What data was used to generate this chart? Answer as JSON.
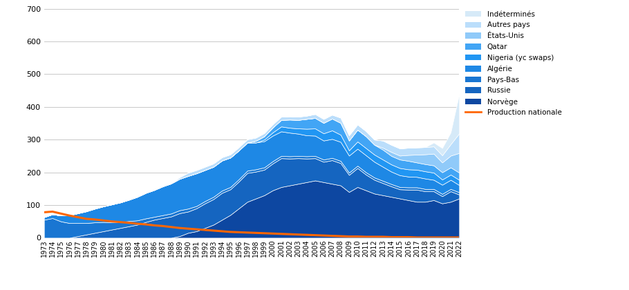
{
  "years": [
    1973,
    1974,
    1975,
    1976,
    1977,
    1978,
    1979,
    1980,
    1981,
    1982,
    1983,
    1984,
    1985,
    1986,
    1987,
    1988,
    1989,
    1990,
    1991,
    1992,
    1993,
    1994,
    1995,
    1996,
    1997,
    1998,
    1999,
    2000,
    2001,
    2002,
    2003,
    2004,
    2005,
    2006,
    2007,
    2008,
    2009,
    2010,
    2011,
    2012,
    2013,
    2014,
    2015,
    2016,
    2017,
    2018,
    2019,
    2020,
    2021,
    2022
  ],
  "norvege": [
    0,
    0,
    0,
    0,
    0,
    0,
    0,
    0,
    0,
    0,
    0,
    0,
    0,
    0,
    0,
    0,
    5,
    15,
    20,
    30,
    40,
    55,
    70,
    90,
    110,
    120,
    130,
    145,
    155,
    160,
    165,
    170,
    175,
    170,
    165,
    160,
    140,
    155,
    145,
    135,
    130,
    125,
    120,
    115,
    110,
    110,
    115,
    105,
    110,
    120
  ],
  "russie": [
    0,
    0,
    0,
    0,
    5,
    10,
    15,
    20,
    25,
    30,
    35,
    40,
    48,
    55,
    60,
    65,
    70,
    65,
    70,
    75,
    78,
    82,
    78,
    82,
    88,
    82,
    78,
    82,
    88,
    82,
    78,
    72,
    68,
    62,
    72,
    68,
    52,
    58,
    48,
    42,
    37,
    32,
    28,
    32,
    37,
    32,
    27,
    22,
    32,
    12
  ],
  "pays_bas": [
    55,
    60,
    50,
    45,
    40,
    35,
    32,
    28,
    22,
    18,
    16,
    13,
    11,
    9,
    9,
    9,
    9,
    9,
    7,
    7,
    7,
    7,
    7,
    7,
    7,
    7,
    7,
    7,
    7,
    7,
    7,
    7,
    7,
    7,
    7,
    7,
    7,
    7,
    7,
    7,
    7,
    7,
    7,
    7,
    7,
    7,
    7,
    7,
    7,
    7
  ],
  "algerie": [
    8,
    12,
    18,
    24,
    30,
    36,
    42,
    48,
    55,
    60,
    65,
    72,
    78,
    82,
    88,
    92,
    96,
    100,
    100,
    95,
    92,
    92,
    90,
    88,
    86,
    82,
    80,
    78,
    75,
    72,
    68,
    64,
    62,
    58,
    58,
    58,
    52,
    52,
    52,
    48,
    43,
    38,
    36,
    33,
    32,
    32,
    28,
    28,
    28,
    22
  ],
  "nigeria": [
    0,
    0,
    0,
    0,
    0,
    0,
    0,
    0,
    0,
    0,
    0,
    0,
    0,
    0,
    0,
    0,
    0,
    0,
    0,
    0,
    0,
    0,
    0,
    0,
    0,
    0,
    5,
    10,
    15,
    15,
    16,
    20,
    22,
    22,
    26,
    22,
    16,
    22,
    22,
    22,
    22,
    22,
    22,
    22,
    22,
    22,
    22,
    16,
    16,
    16
  ],
  "qatar": [
    0,
    0,
    0,
    0,
    0,
    0,
    0,
    0,
    0,
    0,
    0,
    0,
    0,
    0,
    0,
    0,
    0,
    0,
    0,
    0,
    0,
    0,
    0,
    0,
    0,
    5,
    10,
    15,
    20,
    25,
    26,
    30,
    32,
    32,
    36,
    36,
    30,
    36,
    36,
    30,
    30,
    26,
    26,
    26,
    22,
    22,
    22,
    22,
    22,
    22
  ],
  "etats_unis": [
    0,
    0,
    0,
    0,
    0,
    0,
    0,
    0,
    0,
    0,
    0,
    0,
    0,
    0,
    0,
    0,
    0,
    0,
    0,
    0,
    0,
    0,
    0,
    0,
    0,
    0,
    0,
    0,
    0,
    0,
    0,
    0,
    0,
    0,
    0,
    0,
    0,
    0,
    0,
    0,
    6,
    12,
    12,
    18,
    24,
    30,
    36,
    30,
    36,
    60
  ],
  "autres_pays": [
    0,
    0,
    0,
    0,
    0,
    0,
    0,
    0,
    0,
    0,
    0,
    0,
    0,
    0,
    0,
    0,
    5,
    10,
    10,
    10,
    10,
    10,
    10,
    10,
    10,
    10,
    10,
    10,
    10,
    10,
    10,
    10,
    12,
    12,
    12,
    16,
    16,
    16,
    16,
    16,
    22,
    22,
    22,
    22,
    22,
    22,
    22,
    22,
    35,
    60
  ],
  "indetermines": [
    0,
    0,
    0,
    0,
    0,
    0,
    0,
    0,
    0,
    0,
    0,
    0,
    0,
    0,
    0,
    0,
    0,
    0,
    0,
    0,
    0,
    0,
    0,
    0,
    0,
    0,
    0,
    0,
    0,
    0,
    0,
    0,
    0,
    0,
    0,
    0,
    0,
    0,
    0,
    0,
    0,
    0,
    0,
    0,
    0,
    0,
    12,
    22,
    36,
    120
  ],
  "production_nationale": [
    78,
    80,
    74,
    68,
    63,
    58,
    56,
    53,
    50,
    48,
    46,
    43,
    41,
    38,
    36,
    33,
    30,
    28,
    26,
    24,
    22,
    20,
    18,
    17,
    16,
    15,
    14,
    13,
    12,
    11,
    10,
    9,
    8,
    7,
    6,
    5,
    4,
    4,
    3,
    3,
    3,
    2,
    2,
    2,
    1,
    1,
    1,
    1,
    1,
    1
  ],
  "colors": {
    "norvege": "#0D47A1",
    "russie": "#1565C0",
    "pays_bas": "#1976D2",
    "algerie": "#1E88E5",
    "nigeria": "#2196F3",
    "qatar": "#42A5F5",
    "etats_unis": "#90CAF9",
    "autres_pays": "#BBDEFB",
    "indetermines": "#D6EAF8",
    "production_nationale": "#FF6600"
  },
  "labels": {
    "norvege": "Norvège",
    "russie": "Russie",
    "pays_bas": "Pays-Bas",
    "algerie": "Algérie",
    "nigeria": "Nigeria (yc swaps)",
    "qatar": "Qatar",
    "etats_unis": "États-Unis",
    "autres_pays": "Autres pays",
    "indetermines": "Indéterminés",
    "production_nationale": "Production nationale"
  },
  "ylim": [
    0,
    700
  ],
  "yticks": [
    0,
    100,
    200,
    300,
    400,
    500,
    600,
    700
  ],
  "background_color": "#FFFFFF",
  "grid_color": "#C8C8C8",
  "figsize": [
    9.1,
    4.2
  ],
  "dpi": 100
}
